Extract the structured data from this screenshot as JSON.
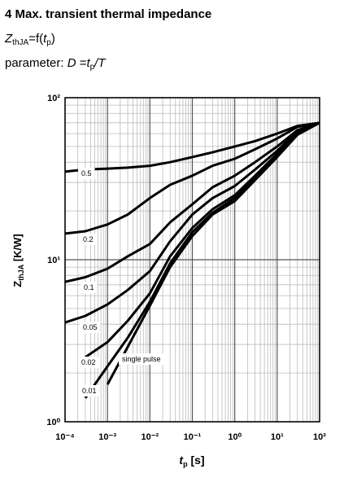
{
  "chart_data": {
    "type": "line",
    "title": "4 Max. transient thermal impedance",
    "formula": [
      "Z",
      "thJA",
      "=f(",
      "t",
      "p",
      ")"
    ],
    "parameter": [
      "parameter: ",
      "D",
      " =",
      "t",
      "p",
      "/T"
    ],
    "y_label": [
      "Z",
      "thJA",
      " [K/W]"
    ],
    "x_label": [
      "t",
      "p",
      " [s]"
    ],
    "log_x": true,
    "log_y": true,
    "grid": true,
    "xlim": [
      0.0001,
      100
    ],
    "ylim": [
      1,
      100
    ],
    "xticks": [
      {
        "value": 0.0001,
        "label": "10⁻⁴"
      },
      {
        "value": 0.001,
        "label": "10⁻³"
      },
      {
        "value": 0.01,
        "label": "10⁻²"
      },
      {
        "value": 0.1,
        "label": "10⁻¹"
      },
      {
        "value": 1,
        "label": "10⁰"
      },
      {
        "value": 10,
        "label": "10¹"
      },
      {
        "value": 100,
        "label": "10²"
      }
    ],
    "yticks": [
      {
        "value": 1,
        "label": "10⁰"
      },
      {
        "value": 10,
        "label": "10¹"
      },
      {
        "value": 100,
        "label": "10²"
      }
    ],
    "x": [
      0.0001,
      0.0003,
      0.001,
      0.003,
      0.01,
      0.03,
      0.1,
      0.3,
      1,
      3,
      10,
      30,
      100
    ],
    "series": [
      {
        "name": "0.5",
        "color": "#000000",
        "values": [
          35,
          36,
          36.5,
          37,
          38,
          40,
          43,
          46,
          50,
          54,
          60,
          67,
          70
        ]
      },
      {
        "name": "0.2",
        "color": "#000000",
        "values": [
          14.5,
          15,
          16.5,
          19,
          24,
          29,
          33,
          38,
          42,
          48,
          56,
          66,
          70
        ]
      },
      {
        "name": "0.1",
        "color": "#000000",
        "values": [
          7.3,
          7.8,
          8.8,
          10.5,
          12.5,
          17,
          22,
          28,
          33,
          40,
          50,
          63,
          70
        ]
      },
      {
        "name": "0.05",
        "color": "#000000",
        "values": [
          4.1,
          4.5,
          5.3,
          6.5,
          8.5,
          13,
          19,
          24,
          28.5,
          36,
          47,
          62,
          70
        ]
      },
      {
        "name": "0.02",
        "color": "#000000",
        "values": [
          null,
          2.5,
          3.1,
          4.2,
          6.2,
          10.5,
          15.7,
          20.5,
          25,
          33,
          45,
          61,
          70
        ]
      },
      {
        "name": "0.01",
        "color": "#000000",
        "values": [
          null,
          1.4,
          2.2,
          3.3,
          5.5,
          9.5,
          14.8,
          19.5,
          24,
          32,
          44,
          60,
          70
        ]
      },
      {
        "name": "single pulse",
        "color": "#000000",
        "values": [
          null,
          null,
          1.7,
          2.9,
          5.2,
          9,
          14,
          19,
          23,
          31,
          43,
          59,
          70
        ]
      }
    ]
  }
}
